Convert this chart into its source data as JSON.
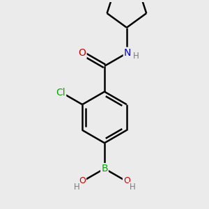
{
  "background_color": "#ebebeb",
  "bond_color": "#000000",
  "bond_width": 1.8,
  "atom_colors": {
    "C": "#000000",
    "H": "#7a7a7a",
    "N": "#0000cc",
    "O": "#cc0000",
    "Cl": "#00aa00",
    "B": "#00aa00"
  },
  "font_size_atom": 9,
  "font_size_small": 7.5
}
